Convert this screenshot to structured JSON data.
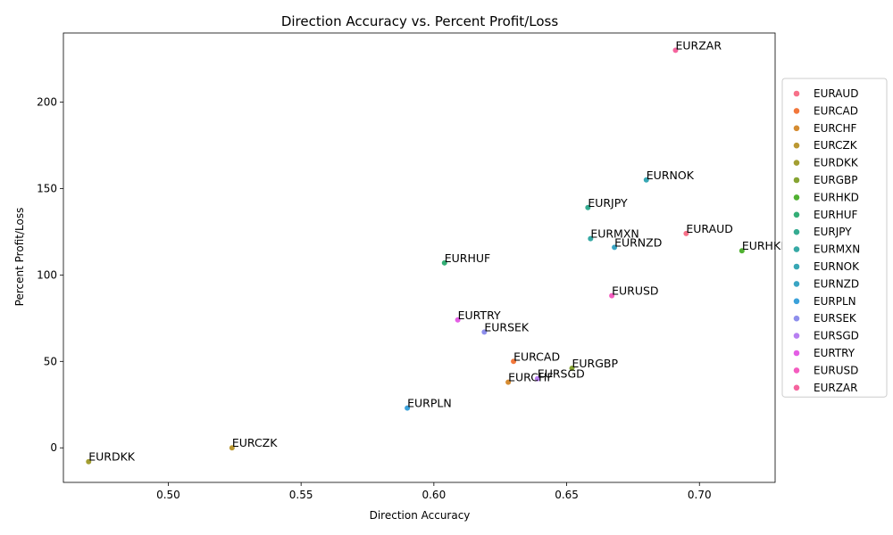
{
  "chart_data": {
    "type": "scatter",
    "title": "Direction Accuracy vs. Percent Profit/Loss",
    "xlabel": "Direction Accuracy",
    "ylabel": "Percent Profit/Loss",
    "xlim": [
      0.4605,
      0.7285
    ],
    "ylim": [
      -20,
      240
    ],
    "xticks": [
      0.5,
      0.55,
      0.6,
      0.65,
      0.7
    ],
    "xtick_labels": [
      "0.50",
      "0.55",
      "0.60",
      "0.65",
      "0.70"
    ],
    "yticks": [
      0,
      50,
      100,
      150,
      200
    ],
    "ytick_labels": [
      "0",
      "50",
      "100",
      "150",
      "200"
    ],
    "grid": false,
    "legend_position": "right",
    "series": [
      {
        "name": "EURAUD",
        "label": "EURAUD",
        "x": 0.695,
        "y": 124,
        "color": "#f77189"
      },
      {
        "name": "EURCAD",
        "label": "EURCAD",
        "x": 0.63,
        "y": 50,
        "color": "#f2773b"
      },
      {
        "name": "EURCHF",
        "label": "EURCHF",
        "x": 0.628,
        "y": 38,
        "color": "#d58c32"
      },
      {
        "name": "EURCZK",
        "label": "EURCZK",
        "x": 0.524,
        "y": 0,
        "color": "#bb9832"
      },
      {
        "name": "EURDKK",
        "label": "EURDKK",
        "x": 0.47,
        "y": -8,
        "color": "#a39e32"
      },
      {
        "name": "EURGBP",
        "label": "EURGBP",
        "x": 0.652,
        "y": 46,
        "color": "#86a432"
      },
      {
        "name": "EURHKD",
        "label": "EURHKD",
        "x": 0.716,
        "y": 114,
        "color": "#50b131"
      },
      {
        "name": "EURHUF",
        "label": "EURHUF",
        "x": 0.604,
        "y": 107,
        "color": "#34ae76"
      },
      {
        "name": "EURJPY",
        "label": "EURJPY",
        "x": 0.658,
        "y": 139,
        "color": "#35ab91"
      },
      {
        "name": "EURMXN",
        "label": "EURMXN",
        "x": 0.659,
        "y": 121,
        "color": "#36a9a5"
      },
      {
        "name": "EURNOK",
        "label": "EURNOK",
        "x": 0.68,
        "y": 155,
        "color": "#38a7b4"
      },
      {
        "name": "EURNZD",
        "label": "EURNZD",
        "x": 0.668,
        "y": 116,
        "color": "#3aa5c4"
      },
      {
        "name": "EURPLN",
        "label": "EURPLN",
        "x": 0.59,
        "y": 23,
        "color": "#3ba1da"
      },
      {
        "name": "EURSEK",
        "label": "EURSEK",
        "x": 0.619,
        "y": 67,
        "color": "#8e8fec"
      },
      {
        "name": "EURSGD",
        "label": "EURSGD",
        "x": 0.639,
        "y": 40,
        "color": "#b77ff1"
      },
      {
        "name": "EURTRY",
        "label": "EURTRY",
        "x": 0.609,
        "y": 74,
        "color": "#e45ee5"
      },
      {
        "name": "EURUSD",
        "label": "EURUSD",
        "x": 0.667,
        "y": 88,
        "color": "#f45cbf"
      },
      {
        "name": "EURZAR",
        "label": "EURZAR",
        "x": 0.691,
        "y": 230,
        "color": "#f5649e"
      }
    ]
  }
}
